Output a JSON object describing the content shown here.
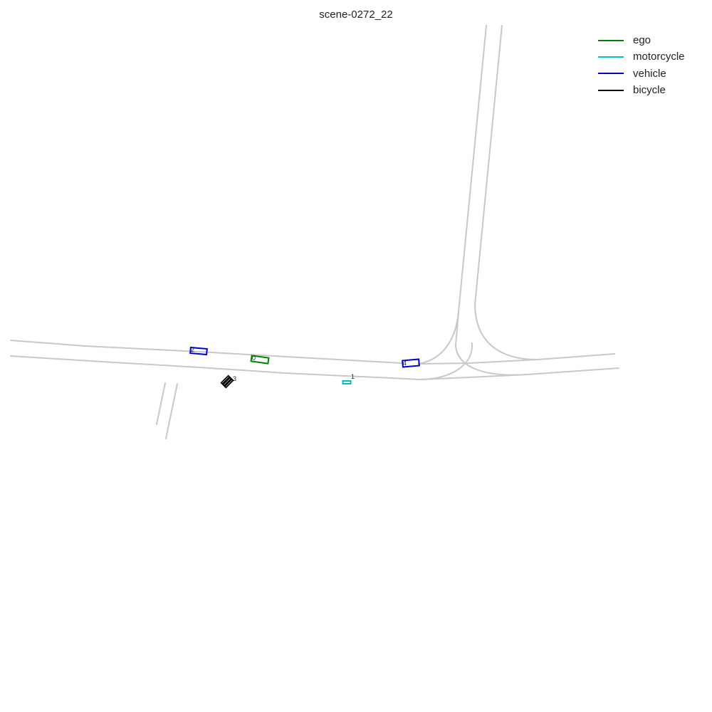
{
  "title": "scene-0272_22",
  "legend": {
    "items": [
      {
        "label": "ego",
        "color": "#008000"
      },
      {
        "label": "motorcycle",
        "color": "#00bfbf"
      },
      {
        "label": "vehicle",
        "color": "#0000cc"
      },
      {
        "label": "bicycle",
        "color": "#000000"
      }
    ]
  },
  "agents": [
    {
      "id": "0",
      "category": "ego",
      "color": "#008000"
    },
    {
      "id": "1",
      "category": "motorcycle",
      "color": "#00bfbf"
    },
    {
      "id": "2",
      "category": "vehicle",
      "color": "#0000cc"
    },
    {
      "id": "3",
      "category": "bicycle",
      "color": "#000000"
    },
    {
      "id": "4",
      "category": "vehicle",
      "color": "#0000cc"
    }
  ],
  "map": {
    "lane_color": "#c8c8c8"
  }
}
